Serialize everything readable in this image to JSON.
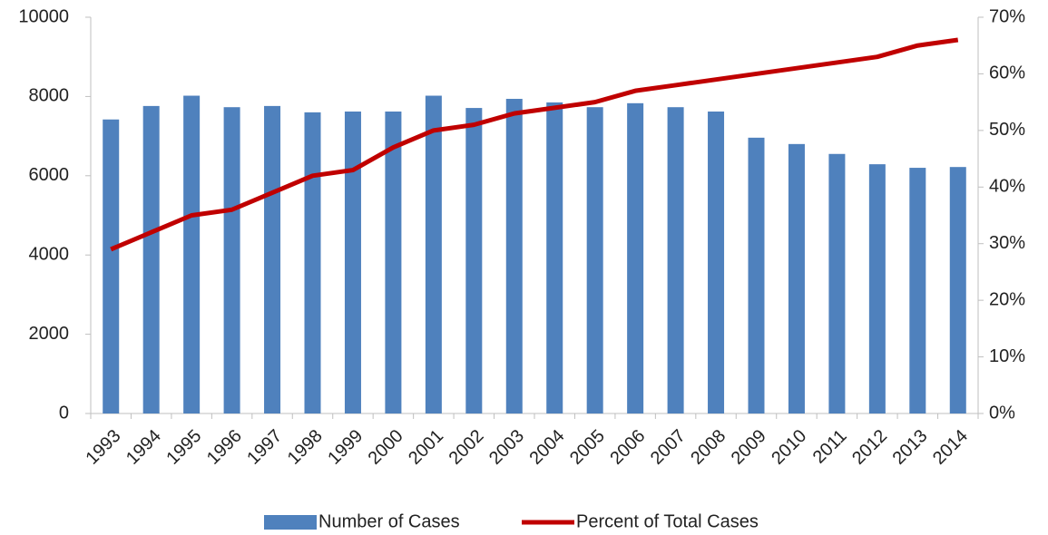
{
  "chart_data": {
    "type": "bar_line",
    "categories": [
      "1993",
      "1994",
      "1995",
      "1996",
      "1997",
      "1998",
      "1999",
      "2000",
      "2001",
      "2002",
      "2003",
      "2004",
      "2005",
      "2006",
      "2007",
      "2008",
      "2009",
      "2010",
      "2011",
      "2012",
      "2013",
      "2014"
    ],
    "series": [
      {
        "name": "Number of Cases",
        "type": "bar",
        "color": "#4f81bd",
        "values": [
          7420,
          7760,
          8020,
          7730,
          7760,
          7600,
          7620,
          7620,
          8020,
          7710,
          7940,
          7850,
          7730,
          7830,
          7730,
          7620,
          6960,
          6800,
          6550,
          6290,
          6200,
          6220
        ]
      },
      {
        "name": "Percent of Total Cases",
        "type": "line",
        "color": "#c00000",
        "axis": "y2",
        "values": [
          29,
          32,
          35,
          36,
          39,
          42,
          43,
          47,
          50,
          51,
          53,
          54,
          55,
          57,
          58,
          59,
          60,
          61,
          62,
          63,
          65,
          66
        ]
      }
    ],
    "ylim": [
      0,
      10000
    ],
    "yticks": [
      0,
      2000,
      4000,
      6000,
      8000,
      10000
    ],
    "y2lim": [
      0,
      70
    ],
    "y2ticks": [
      {
        "value": 0,
        "label": "0%"
      },
      {
        "value": 10,
        "label": "10%"
      },
      {
        "value": 20,
        "label": "20%"
      },
      {
        "value": 30,
        "label": "30%"
      },
      {
        "value": 40,
        "label": "40%"
      },
      {
        "value": 50,
        "label": "50%"
      },
      {
        "value": 60,
        "label": "60%"
      },
      {
        "value": 70,
        "label": "70%"
      }
    ],
    "legend": "bottom",
    "grid": false
  }
}
